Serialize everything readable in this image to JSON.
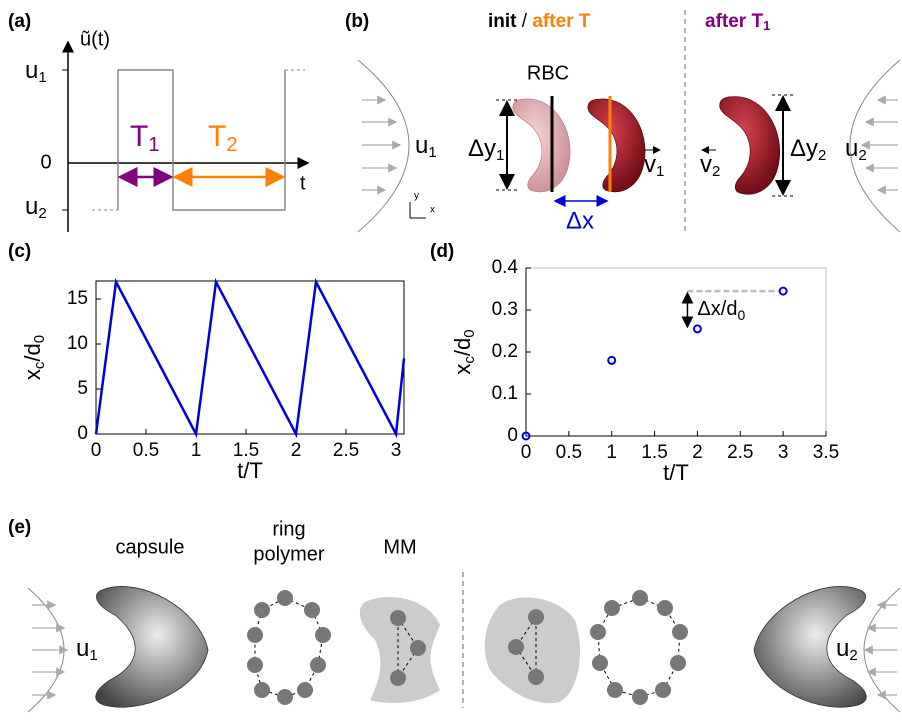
{
  "panel_a": {
    "label": "(a)",
    "ylabel": "ũ(t)",
    "u1": [
      "u",
      "1"
    ],
    "zero": "0",
    "u2": [
      "u",
      "2"
    ],
    "xlabel": "t",
    "T1": [
      "T",
      "1"
    ],
    "T2": [
      "T",
      "2"
    ]
  },
  "panel_b": {
    "label": "(b)",
    "title_init": "init",
    "title_sep": " / ",
    "title_after": "after T",
    "title_after_T1": [
      "after T",
      "1"
    ],
    "rbc": "RBC",
    "dy1": [
      "Δy",
      "1"
    ],
    "v1": [
      "v",
      "1"
    ],
    "dx": "Δx",
    "v2": [
      "v",
      "2"
    ],
    "dy2": [
      "Δy",
      "2"
    ],
    "u1": [
      "u",
      "1"
    ],
    "u2": [
      "u",
      "2"
    ],
    "axis_y": "y",
    "axis_x": "x"
  },
  "chart_data": [
    {
      "type": "line",
      "panel_label": "(c)",
      "xlabel": "t/T",
      "ylabel": [
        "x",
        "c",
        "/d",
        "0"
      ],
      "color": "#0000dd",
      "x": [
        0,
        0.2,
        1,
        1.2,
        2,
        2.2,
        3,
        3.08
      ],
      "values": [
        0,
        16.9,
        0,
        16.9,
        0,
        16.9,
        0,
        8.4
      ],
      "xlim": [
        0,
        3.08
      ],
      "ylim": [
        0,
        17
      ],
      "xticks": [
        0,
        0.5,
        1,
        1.5,
        2,
        2.5,
        3
      ],
      "yticks": [
        0,
        5,
        10,
        15
      ]
    },
    {
      "type": "scatter",
      "panel_label": "(d)",
      "xlabel": "t/T",
      "ylabel": [
        "x",
        "c",
        "/d",
        "0"
      ],
      "color": "#0000dd",
      "x": [
        0,
        1,
        2,
        3
      ],
      "values": [
        0,
        0.18,
        0.255,
        0.345
      ],
      "xlim": [
        0,
        3.5
      ],
      "ylim": [
        0,
        0.4
      ],
      "xticks": [
        0,
        0.5,
        1,
        1.5,
        2,
        2.5,
        3,
        3.5
      ],
      "yticks": [
        0,
        0.1,
        0.2,
        0.3,
        0.4
      ],
      "annotation": [
        "Δx/d",
        "0"
      ]
    }
  ],
  "panel_e": {
    "label": "(e)",
    "capsule": "capsule",
    "ring_polymer": [
      "ring",
      "polymer"
    ],
    "mm": "MM",
    "u1": [
      "u",
      "1"
    ],
    "u2": [
      "u",
      "2"
    ]
  }
}
